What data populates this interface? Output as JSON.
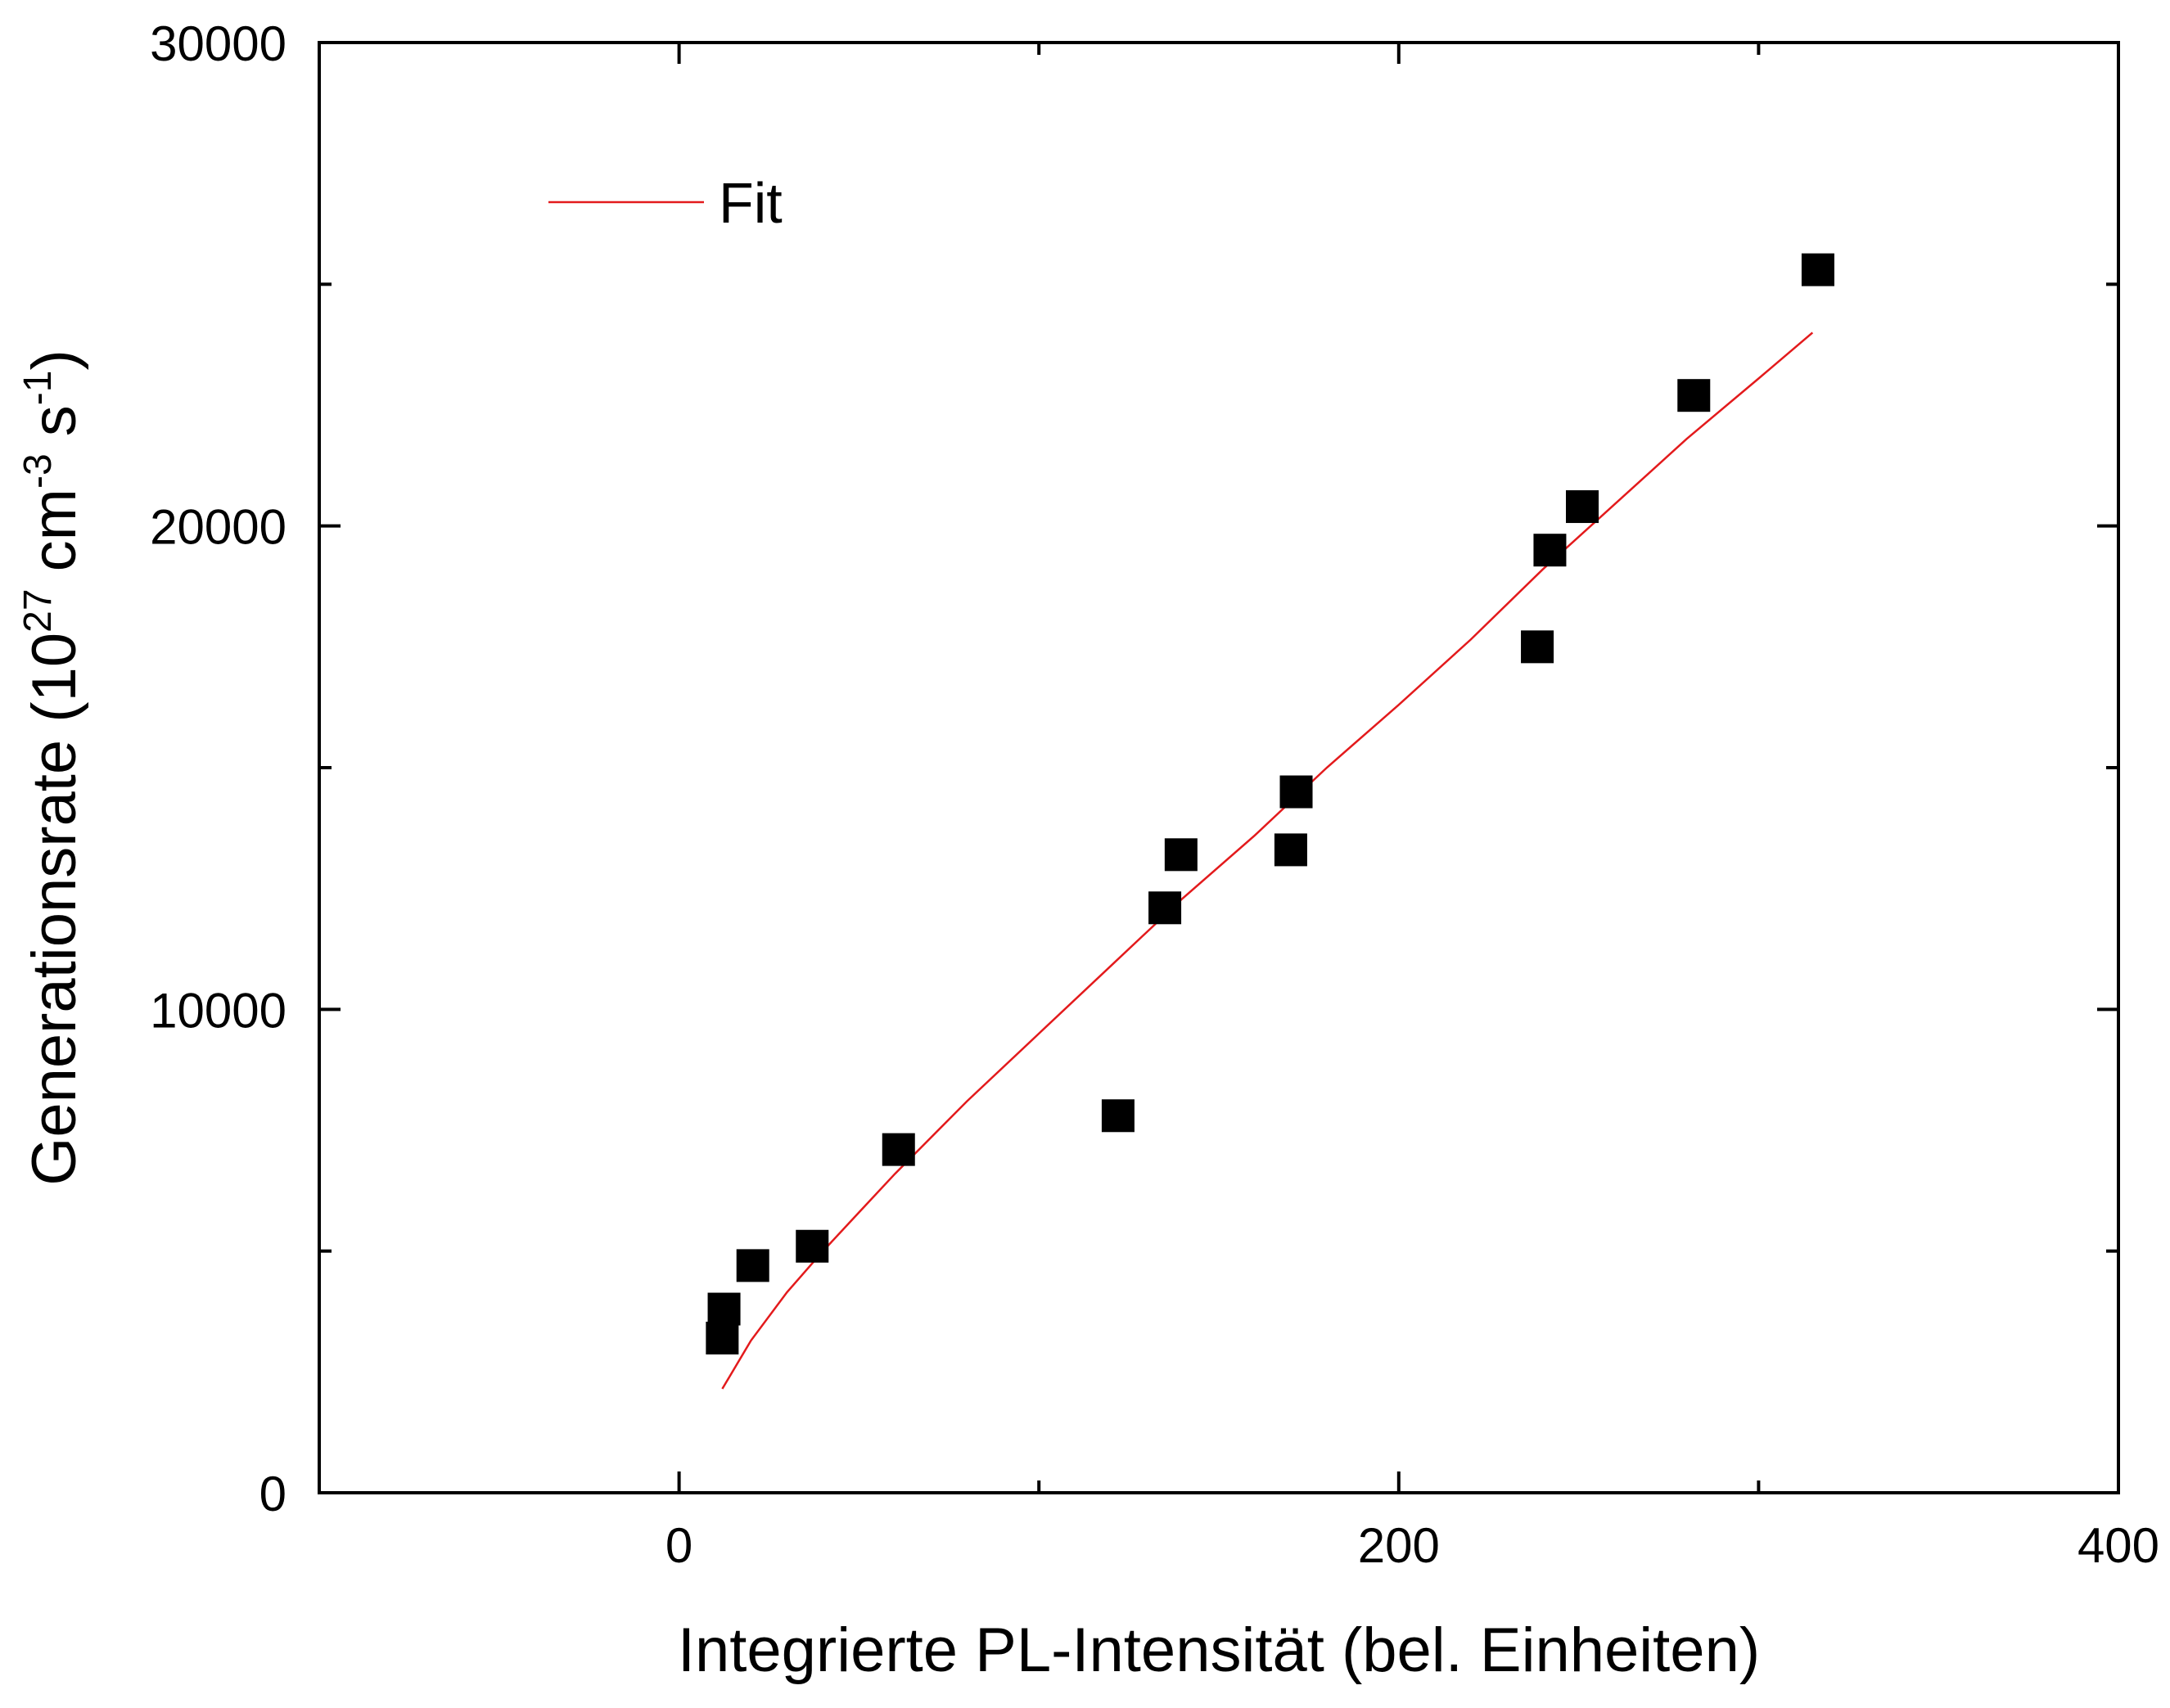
{
  "chart_data": {
    "type": "scatter",
    "title": "",
    "xlabel": "Integrierte PL-Intensität (bel. Einheiten)",
    "ylabel": {
      "prefix": "Generationsrate (10",
      "exp1": "27",
      "middle": " cm",
      "exp2": "-3",
      "space": " s",
      "exp3": "-1",
      "suffix": ")"
    },
    "xlim": [
      -100,
      400
    ],
    "ylim": [
      0,
      30000
    ],
    "xticks": [
      0,
      200,
      400
    ],
    "yticks": [
      0,
      10000,
      20000,
      30000
    ],
    "xtick_labels": [
      "0",
      "200",
      "400"
    ],
    "ytick_labels": [
      "0",
      "10000",
      "20000",
      "30000"
    ],
    "x_minor_ticks": [
      -100,
      100,
      300
    ],
    "y_minor_ticks": [
      5000,
      15000,
      25000
    ],
    "grid": false,
    "legend": {
      "position": "top-left",
      "entries": [
        {
          "label": "Fit",
          "color": "#e31a1c",
          "style": "line"
        }
      ]
    },
    "series": [
      {
        "type": "scatter",
        "marker": "square",
        "color": "#000000",
        "x": [
          12,
          12.5,
          20.5,
          37,
          61,
          122,
          135,
          139.5,
          170,
          171.5,
          238.5,
          242,
          251,
          282,
          316.5
        ],
        "y": [
          3200,
          3800,
          4700,
          5100,
          7100,
          7800,
          12100,
          13200,
          13300,
          14500,
          17500,
          19500,
          20400,
          22700,
          25300
        ]
      },
      {
        "name": "Fit",
        "type": "line",
        "color": "#e31a1c",
        "x": [
          12,
          20,
          30,
          40,
          50,
          60,
          80,
          100,
          120,
          140,
          160,
          180,
          200,
          220,
          240,
          260,
          280,
          300,
          315
        ],
        "y": [
          2150,
          3150,
          4150,
          5000,
          5800,
          6600,
          8100,
          9500,
          10900,
          12300,
          13600,
          15000,
          16300,
          17650,
          19100,
          20450,
          21800,
          23050,
          24000
        ]
      }
    ]
  },
  "colors": {
    "axis": "#000000",
    "fit_line": "#e31a1c",
    "markers": "#000000",
    "background": "#ffffff"
  }
}
